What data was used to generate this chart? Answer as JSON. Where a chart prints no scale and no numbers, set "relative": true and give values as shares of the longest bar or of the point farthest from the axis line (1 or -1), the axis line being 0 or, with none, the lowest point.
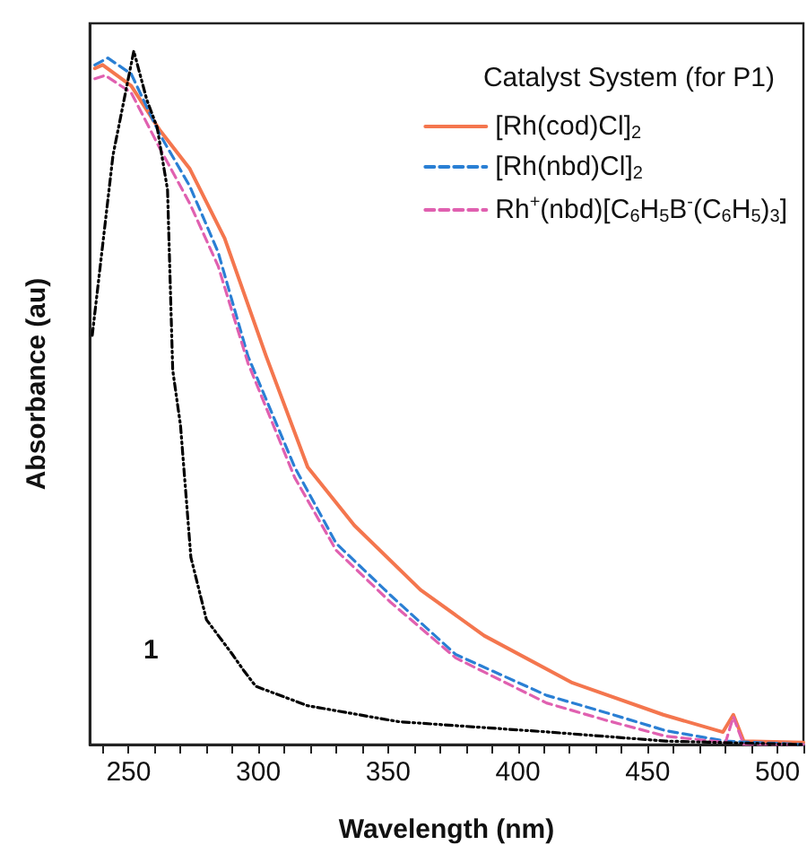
{
  "chart_data": {
    "type": "line",
    "xlabel": "Wavelength (nm)",
    "ylabel": "Absorbance (au)",
    "legend_title": "Catalyst System (for P1)",
    "relative": true,
    "legend": "top right",
    "grid": false,
    "marker": "none",
    "xlim": [
      235,
      510
    ],
    "xticks": [
      {
        "value": 240,
        "label": null
      },
      250,
      {
        "value": 260,
        "label": null
      },
      {
        "value": 270,
        "label": null
      },
      {
        "value": 280,
        "label": null
      },
      {
        "value": 290,
        "label": null
      },
      300,
      {
        "value": 310,
        "label": null
      },
      {
        "value": 320,
        "label": null
      },
      {
        "value": 330,
        "label": null
      },
      {
        "value": 340,
        "label": null
      },
      350,
      {
        "value": 360,
        "label": null
      },
      {
        "value": 370,
        "label": null
      },
      {
        "value": 380,
        "label": null
      },
      {
        "value": 390,
        "label": null
      },
      400,
      {
        "value": 410,
        "label": null
      },
      {
        "value": 420,
        "label": null
      },
      {
        "value": 430,
        "label": null
      },
      {
        "value": 440,
        "label": null
      },
      450,
      {
        "value": 460,
        "label": null
      },
      {
        "value": 470,
        "label": null
      },
      {
        "value": 480,
        "label": null
      },
      {
        "value": 490,
        "label": null
      },
      500,
      {
        "value": 510,
        "label": null
      }
    ],
    "annotations": [
      "1"
    ],
    "series": [
      {
        "name": "[Rh(cod)Cl]$_{2}$",
        "color": "#f4764e",
        "line_style": "solid",
        "x": [
          237,
          240,
          251,
          262,
          273.6,
          287,
          303,
          319,
          337,
          362.5,
          387,
          421,
          456,
          479,
          483,
          487,
          510
        ],
        "values": [
          0.975,
          0.98,
          0.95,
          0.886,
          0.83,
          0.73,
          0.56,
          0.4,
          0.316,
          0.223,
          0.157,
          0.089,
          0.043,
          0.018,
          0.043,
          0.005,
          0.003
        ]
      },
      {
        "name": "[Rh(nbd)Cl]$_{2}$",
        "color": "#2a7fd4",
        "line_style": "dashed",
        "x": [
          237,
          242,
          251,
          262,
          273.6,
          284.5,
          296,
          314,
          330,
          351,
          376,
          411,
          434,
          457,
          480,
          510
        ],
        "values": [
          0.98,
          0.99,
          0.967,
          0.88,
          0.805,
          0.71,
          0.56,
          0.4,
          0.29,
          0.215,
          0.13,
          0.071,
          0.046,
          0.02,
          0.005,
          0
        ]
      },
      {
        "name": "Rh$^{+}$(nbd)[C$_{6}$H$_{5}$B$^{-}$(C$_{6}$H$_{5}$)$_{3}$]",
        "color": "#e060b0",
        "line_style": "dashed",
        "x": [
          237,
          241,
          251,
          262,
          273.6,
          284.5,
          296,
          314,
          330,
          351,
          376,
          411,
          434,
          457,
          480,
          483,
          487,
          510
        ],
        "values": [
          0.96,
          0.965,
          0.94,
          0.86,
          0.78,
          0.69,
          0.55,
          0.385,
          0.28,
          0.205,
          0.125,
          0.06,
          0.035,
          0.012,
          0.003,
          0.04,
          0,
          0
        ]
      },
      {
        "color": "#000000",
        "line_style": "dotted",
        "x": [
          236,
          244,
          252,
          257,
          261,
          265,
          267,
          270,
          274,
          280,
          290,
          294.5,
          299,
          319,
          354,
          412,
          457,
          510
        ],
        "values": [
          0.59,
          0.85,
          1,
          0.93,
          0.89,
          0.8,
          0.54,
          0.46,
          0.27,
          0.18,
          0.13,
          0.106,
          0.084,
          0.056,
          0.033,
          0.018,
          0.005,
          0
        ]
      }
    ]
  }
}
